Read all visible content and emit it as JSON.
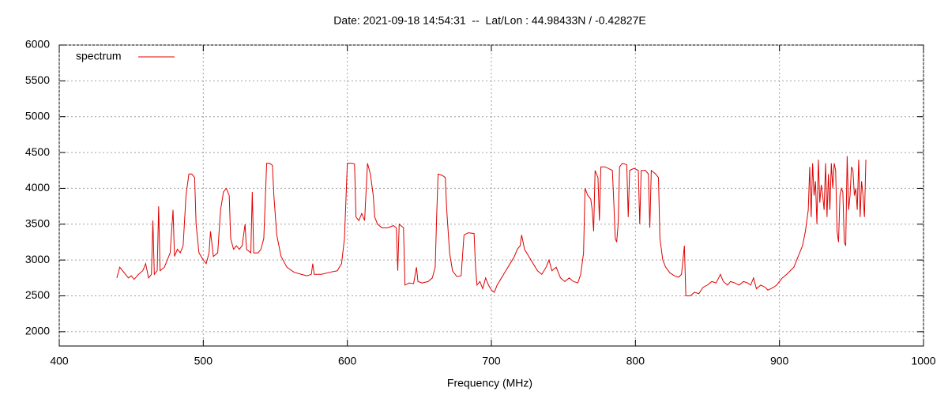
{
  "chart_data": {
    "type": "line",
    "title": "Date: 2021-09-18 14:54:31  --  Lat/Lon : 44.98433N / -0.42827E",
    "x_label": "Frequency (MHz)",
    "xlim": [
      400,
      1000
    ],
    "xticks": [
      400,
      500,
      600,
      700,
      800,
      900,
      1000
    ],
    "ylim": [
      1800,
      6000
    ],
    "yticks": [
      2000,
      2500,
      3000,
      3500,
      4000,
      4500,
      5000,
      5500,
      6000
    ],
    "grid": true,
    "legend_position": "top-left",
    "x": [
      440,
      442,
      444,
      446,
      448,
      450,
      452,
      455,
      458,
      460,
      462,
      464,
      465,
      466,
      468,
      469,
      470,
      473,
      475,
      477,
      479,
      480,
      482,
      484,
      486,
      488,
      490,
      492,
      494,
      495,
      497,
      500,
      502,
      504,
      505,
      507,
      510,
      512,
      514,
      516,
      518,
      519,
      521,
      523,
      525,
      527,
      529,
      530,
      533,
      534,
      535,
      538,
      540,
      542,
      544,
      546,
      548,
      549,
      551,
      554,
      558,
      563,
      568,
      572,
      575,
      576,
      577,
      582,
      588,
      593,
      596,
      598,
      600,
      603,
      605,
      606,
      608,
      610,
      612,
      614,
      616,
      618,
      619,
      621,
      624,
      628,
      632,
      634,
      635,
      636,
      639,
      640,
      643,
      646,
      648,
      649,
      652,
      656,
      659,
      661,
      662,
      663,
      666,
      668,
      669,
      671,
      673,
      676,
      679,
      681,
      684,
      688,
      689,
      690,
      692,
      694,
      696,
      698,
      700,
      702,
      704,
      707,
      710,
      713,
      716,
      718,
      720,
      721,
      723,
      726,
      729,
      732,
      735,
      738,
      740,
      742,
      745,
      748,
      751,
      754,
      757,
      760,
      762,
      764,
      765,
      767,
      769,
      770,
      771,
      772,
      774,
      775,
      776,
      779,
      782,
      784,
      785,
      786,
      787,
      788,
      789,
      791,
      794,
      795,
      796,
      799,
      802,
      803,
      804,
      807,
      809,
      810,
      811,
      814,
      816,
      817,
      819,
      821,
      824,
      827,
      830,
      832,
      834,
      835,
      838,
      841,
      844,
      847,
      850,
      853,
      856,
      859,
      861,
      864,
      866,
      869,
      872,
      875,
      878,
      880,
      882,
      884,
      887,
      890,
      892,
      894,
      896,
      898,
      900,
      902,
      905,
      910,
      913,
      916,
      918,
      920,
      921,
      922,
      923,
      924,
      925,
      926,
      927,
      928,
      929,
      930,
      931,
      932,
      933,
      934,
      935,
      936,
      937,
      938,
      939,
      940,
      941,
      942,
      943,
      944,
      945,
      946,
      947,
      948,
      949,
      950,
      951,
      952,
      953,
      954,
      955,
      956,
      957,
      958,
      959,
      960
    ],
    "series": [
      {
        "name": "spectrum",
        "color": "#e00000",
        "values": [
          2750,
          2900,
          2850,
          2800,
          2750,
          2780,
          2730,
          2800,
          2850,
          2950,
          2750,
          2800,
          3550,
          2800,
          2850,
          3750,
          2850,
          2900,
          3000,
          3100,
          3700,
          3050,
          3150,
          3100,
          3200,
          3900,
          4200,
          4200,
          4150,
          3500,
          3100,
          3000,
          2950,
          3100,
          3400,
          3050,
          3100,
          3700,
          3950,
          4000,
          3900,
          3300,
          3150,
          3200,
          3150,
          3200,
          3500,
          3150,
          3100,
          3950,
          3100,
          3100,
          3150,
          3300,
          4350,
          4350,
          4320,
          3900,
          3350,
          3050,
          2900,
          2830,
          2800,
          2780,
          2800,
          2950,
          2800,
          2800,
          2830,
          2850,
          2950,
          3300,
          4350,
          4350,
          4340,
          3600,
          3550,
          3650,
          3550,
          4350,
          4200,
          3900,
          3600,
          3500,
          3450,
          3450,
          3480,
          3450,
          2850,
          3500,
          3450,
          2650,
          2680,
          2670,
          2900,
          2700,
          2680,
          2700,
          2750,
          2900,
          3600,
          4200,
          4180,
          4150,
          3700,
          3100,
          2850,
          2770,
          2780,
          3350,
          3380,
          3370,
          2900,
          2650,
          2700,
          2600,
          2750,
          2650,
          2580,
          2550,
          2650,
          2750,
          2850,
          2950,
          3050,
          3150,
          3200,
          3350,
          3150,
          3050,
          2950,
          2850,
          2800,
          2900,
          3000,
          2850,
          2900,
          2750,
          2700,
          2750,
          2700,
          2680,
          2800,
          3100,
          4000,
          3900,
          3850,
          3700,
          3400,
          4250,
          4150,
          3550,
          4300,
          4300,
          4270,
          4250,
          3800,
          3300,
          3250,
          3500,
          4300,
          4350,
          4330,
          3600,
          4250,
          4280,
          4250,
          3500,
          4250,
          4250,
          4200,
          3450,
          4250,
          4200,
          4150,
          3300,
          3000,
          2900,
          2820,
          2780,
          2760,
          2800,
          3200,
          2500,
          2500,
          2550,
          2530,
          2620,
          2650,
          2700,
          2680,
          2800,
          2700,
          2650,
          2700,
          2680,
          2650,
          2700,
          2680,
          2650,
          2750,
          2600,
          2650,
          2620,
          2580,
          2600,
          2620,
          2650,
          2700,
          2750,
          2800,
          2900,
          3050,
          3200,
          3400,
          3700,
          4300,
          3600,
          4350,
          3900,
          4100,
          3500,
          4400,
          3800,
          4050,
          3900,
          3700,
          4350,
          3600,
          4200,
          3700,
          4350,
          4000,
          4350,
          4250,
          3400,
          3250,
          3900,
          4000,
          3950,
          3250,
          3200,
          4450,
          3700,
          3900,
          4300,
          4250,
          3900,
          4000,
          3700,
          4400,
          3600,
          4100,
          3900,
          3600,
          4400
        ]
      }
    ]
  }
}
